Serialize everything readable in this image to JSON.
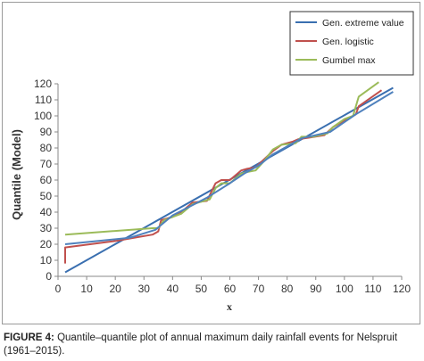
{
  "chart_data": {
    "type": "line",
    "title": "",
    "xlabel": "x",
    "ylabel": "Quantile (Model)",
    "xlim": [
      0,
      120
    ],
    "ylim": [
      0,
      120
    ],
    "xticks": [
      0,
      10,
      20,
      30,
      40,
      50,
      60,
      70,
      80,
      90,
      100,
      110,
      120
    ],
    "yticks": [
      0,
      10,
      20,
      30,
      40,
      50,
      60,
      70,
      80,
      90,
      100,
      110,
      120
    ],
    "grid": false,
    "legend_position": "top-right",
    "series": [
      {
        "name": "Gen. extreme value",
        "color": "#3a6fb0",
        "points": [
          [
            2.5,
            2.5
          ],
          [
            117,
            117.5
          ]
        ]
      },
      {
        "name": "Gen. logistic",
        "color": "#c0504d",
        "points": [
          [
            2.5,
            8
          ],
          [
            2.5,
            18
          ],
          [
            20,
            22
          ],
          [
            33,
            26
          ],
          [
            35,
            28
          ],
          [
            36,
            35
          ],
          [
            40,
            37
          ],
          [
            43,
            40
          ],
          [
            47,
            46
          ],
          [
            52,
            47
          ],
          [
            55,
            58
          ],
          [
            57,
            60
          ],
          [
            60,
            60
          ],
          [
            62,
            63
          ],
          [
            64,
            66
          ],
          [
            66,
            67
          ],
          [
            69,
            68
          ],
          [
            72,
            73
          ],
          [
            75,
            78
          ],
          [
            78,
            82
          ],
          [
            82,
            84
          ],
          [
            84,
            85.5
          ],
          [
            88,
            86.5
          ],
          [
            93,
            88
          ],
          [
            96,
            93
          ],
          [
            100,
            97
          ],
          [
            102,
            99
          ],
          [
            104,
            101
          ],
          [
            105,
            106
          ],
          [
            113,
            116
          ]
        ]
      },
      {
        "name": "Gumbel max",
        "color": "#9bbb59",
        "points": [
          [
            2.5,
            26
          ],
          [
            33,
            30
          ],
          [
            35,
            30
          ],
          [
            37,
            35
          ],
          [
            40,
            37
          ],
          [
            43,
            39
          ],
          [
            47,
            45
          ],
          [
            53,
            48
          ],
          [
            55,
            55
          ],
          [
            57,
            58
          ],
          [
            60,
            58
          ],
          [
            62,
            61
          ],
          [
            64,
            64
          ],
          [
            66,
            65
          ],
          [
            69,
            66
          ],
          [
            72,
            72
          ],
          [
            75,
            79
          ],
          [
            78,
            82
          ],
          [
            83,
            83
          ],
          [
            85,
            87
          ],
          [
            89,
            87
          ],
          [
            94,
            89
          ],
          [
            96,
            93
          ],
          [
            100,
            98
          ],
          [
            103,
            100
          ],
          [
            105,
            112
          ],
          [
            112,
            121
          ]
        ]
      },
      {
        "name": "",
        "color": "#4f81bd",
        "points": [
          [
            2.5,
            20
          ],
          [
            25,
            24
          ],
          [
            34,
            29
          ],
          [
            40,
            38
          ],
          [
            52,
            49
          ],
          [
            60,
            58
          ],
          [
            65,
            64
          ],
          [
            70,
            69
          ],
          [
            75,
            76
          ],
          [
            80,
            81
          ],
          [
            85,
            86
          ],
          [
            95,
            90
          ],
          [
            104,
            101
          ],
          [
            117,
            115
          ]
        ]
      }
    ]
  },
  "caption": {
    "label": "FIGURE 4:",
    "text": " Quantile–quantile plot of annual maximum daily rainfall events for Nelspruit (1961–2015)."
  }
}
